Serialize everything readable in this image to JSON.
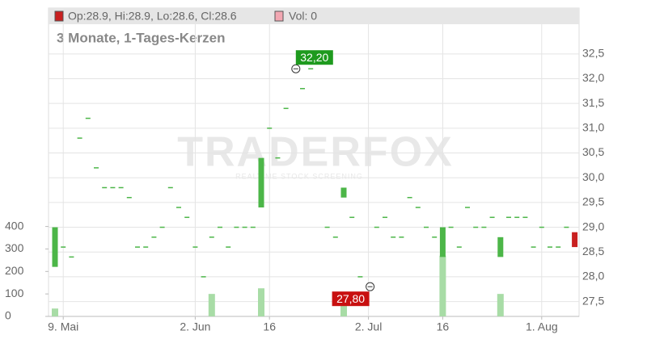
{
  "chart_data": {
    "type": "candlestick",
    "title": "3 Monate, 1-Tages-Kerzen",
    "legend": "Op:28.9, Hi:28.9, Lo:28.6, Cl:28.6",
    "volume_legend": "Vol: 0",
    "watermark": "TRADERFOX",
    "watermark_subtitle": "REALTIME STOCK SCREENING",
    "categories": [
      null,
      "9. Mai",
      null,
      null,
      null,
      null,
      null,
      null,
      null,
      null,
      null,
      null,
      null,
      null,
      null,
      null,
      null,
      "2. Jun",
      null,
      null,
      null,
      null,
      null,
      null,
      null,
      null,
      "16",
      null,
      null,
      null,
      null,
      null,
      null,
      null,
      null,
      null,
      null,
      null,
      "2. Jul",
      null,
      null,
      null,
      null,
      null,
      null,
      null,
      null,
      "16",
      null,
      null,
      null,
      null,
      null,
      null,
      null,
      null,
      null,
      null,
      null,
      "1. Aug",
      null,
      null,
      null,
      null
    ],
    "open": [
      28.2,
      28.6,
      28.4,
      30.8,
      31.2,
      30.2,
      29.8,
      29.8,
      29.8,
      29.6,
      28.6,
      28.6,
      28.8,
      29.0,
      29.8,
      29.4,
      29.2,
      28.6,
      28.0,
      28.8,
      29.0,
      28.6,
      29.0,
      29.0,
      29.0,
      29.4,
      31.0,
      30.4,
      31.4,
      32.2,
      31.8,
      32.2,
      null,
      29.0,
      28.8,
      29.6,
      29.2,
      28.0,
      27.8,
      29.0,
      29.2,
      28.8,
      28.8,
      29.6,
      29.4,
      29.0,
      28.8,
      28.4,
      29.0,
      28.6,
      29.4,
      29.0,
      29.0,
      29.2,
      28.4,
      29.2,
      29.2,
      29.2,
      28.6,
      29.0,
      28.6,
      28.6,
      29.0,
      28.9
    ],
    "close": [
      29.0,
      28.6,
      28.4,
      30.8,
      31.2,
      30.2,
      29.8,
      29.8,
      29.8,
      29.6,
      28.6,
      28.6,
      28.8,
      29.0,
      29.8,
      29.4,
      29.2,
      28.6,
      28.0,
      28.8,
      29.0,
      28.6,
      29.0,
      29.0,
      29.0,
      30.4,
      31.0,
      30.4,
      31.4,
      32.2,
      31.8,
      32.2,
      null,
      29.0,
      28.8,
      29.8,
      29.2,
      28.0,
      27.8,
      29.0,
      29.2,
      28.8,
      28.8,
      29.6,
      29.4,
      29.0,
      28.8,
      29.0,
      29.0,
      28.6,
      29.4,
      29.0,
      29.0,
      29.2,
      28.8,
      29.2,
      29.2,
      29.2,
      28.6,
      29.0,
      28.6,
      28.6,
      29.0,
      28.6
    ],
    "volume": [
      35,
      0,
      0,
      0,
      0,
      0,
      0,
      0,
      0,
      0,
      0,
      0,
      0,
      0,
      0,
      0,
      0,
      0,
      0,
      100,
      0,
      0,
      0,
      0,
      0,
      125,
      0,
      0,
      0,
      0,
      0,
      0,
      0,
      0,
      0,
      50,
      0,
      0,
      0,
      0,
      0,
      0,
      0,
      0,
      0,
      0,
      0,
      270,
      0,
      0,
      0,
      0,
      0,
      0,
      100,
      0,
      0,
      0,
      0,
      0,
      0,
      0,
      0,
      0
    ],
    "up_color": "#4cb648",
    "down_color": "#c81f1f",
    "volume_up_color": "#a8dca6",
    "volume_down_color": "#f2a7b2",
    "annotations": [
      {
        "label": "32,20",
        "value": 32.2,
        "color": "#1e9a1e"
      },
      {
        "label": "27,80",
        "value": 27.8,
        "color": "#c81010"
      }
    ],
    "ylim": [
      27.2,
      33.1
    ],
    "yticks": [
      {
        "value": 27.5,
        "label": "27,5"
      },
      {
        "value": 28.0,
        "label": "28,0"
      },
      {
        "value": 28.5,
        "label": "28,5"
      },
      {
        "value": 29.0,
        "label": "29,0"
      },
      {
        "value": 29.5,
        "label": "29,5"
      },
      {
        "value": 30.0,
        "label": "30,0"
      },
      {
        "value": 30.5,
        "label": "30,5"
      },
      {
        "value": 31.0,
        "label": "31,0"
      },
      {
        "value": 31.5,
        "label": "31,5"
      },
      {
        "value": 32.0,
        "label": "32,0"
      },
      {
        "value": 32.5,
        "label": "32,5"
      }
    ],
    "y2lim": [
      0,
      1300
    ],
    "y2ticks": [
      0,
      100,
      200,
      300,
      400
    ],
    "grid": true
  }
}
